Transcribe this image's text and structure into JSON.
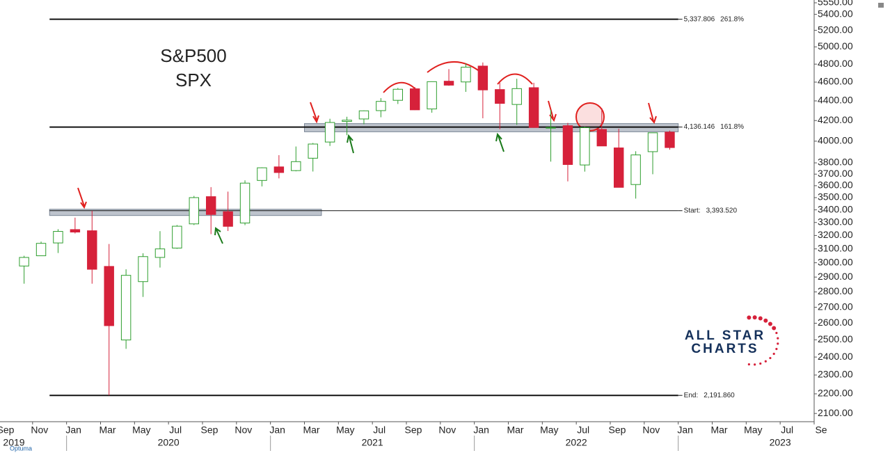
{
  "chart_data": {
    "type": "candlestick",
    "title": "S&P500",
    "subtitle": "SPX",
    "log_scale": true,
    "up_color": "#2e9e2e",
    "down_color": "#d6213a",
    "ylim": [
      2063,
      5550
    ],
    "yticks": [
      {
        "value": 2100,
        "label": "2100.00"
      },
      {
        "value": 2200,
        "label": "2200.00"
      },
      {
        "value": 2300,
        "label": "2300.00"
      },
      {
        "value": 2400,
        "label": "2400.00"
      },
      {
        "value": 2500,
        "label": "2500.00"
      },
      {
        "value": 2600,
        "label": "2600.00"
      },
      {
        "value": 2700,
        "label": "2700.00"
      },
      {
        "value": 2800,
        "label": "2800.00"
      },
      {
        "value": 2900,
        "label": "2900.00"
      },
      {
        "value": 3000,
        "label": "3000.00"
      },
      {
        "value": 3100,
        "label": "3100.00"
      },
      {
        "value": 3200,
        "label": "3200.00"
      },
      {
        "value": 3300,
        "label": "3300.00"
      },
      {
        "value": 3400,
        "label": "3400.00"
      },
      {
        "value": 3500,
        "label": "3500.00"
      },
      {
        "value": 3600,
        "label": "3600.00"
      },
      {
        "value": 3700,
        "label": "3700.00"
      },
      {
        "value": 3800,
        "label": "3800.00"
      },
      {
        "value": 4000,
        "label": "4000.00"
      },
      {
        "value": 4200,
        "label": "4200.00"
      },
      {
        "value": 4400,
        "label": "4400.00"
      },
      {
        "value": 4600,
        "label": "4600.00"
      },
      {
        "value": 4800,
        "label": "4800.00"
      },
      {
        "value": 5000,
        "label": "5000.00"
      },
      {
        "value": 5200,
        "label": "5200.00"
      },
      {
        "value": 5400,
        "label": "5400.00"
      },
      {
        "value": 5550,
        "label": "5550.00"
      }
    ],
    "xlim": [
      "2019-09",
      "2023-09"
    ],
    "xticks": [
      {
        "value": "2019-09",
        "label": "Sep"
      },
      {
        "value": "2019-11",
        "label": "Nov"
      },
      {
        "value": "2020-01",
        "label": "Jan"
      },
      {
        "value": "2020-03",
        "label": "Mar"
      },
      {
        "value": "2020-05",
        "label": "May"
      },
      {
        "value": "2020-07",
        "label": "Jul"
      },
      {
        "value": "2020-09",
        "label": "Sep"
      },
      {
        "value": "2020-11",
        "label": "Nov"
      },
      {
        "value": "2021-01",
        "label": "Jan"
      },
      {
        "value": "2021-03",
        "label": "Mar"
      },
      {
        "value": "2021-05",
        "label": "May"
      },
      {
        "value": "2021-07",
        "label": "Jul"
      },
      {
        "value": "2021-09",
        "label": "Sep"
      },
      {
        "value": "2021-11",
        "label": "Nov"
      },
      {
        "value": "2022-01",
        "label": "Jan"
      },
      {
        "value": "2022-03",
        "label": "Mar"
      },
      {
        "value": "2022-05",
        "label": "May"
      },
      {
        "value": "2022-07",
        "label": "Jul"
      },
      {
        "value": "2022-09",
        "label": "Sep"
      },
      {
        "value": "2022-11",
        "label": "Nov"
      },
      {
        "value": "2023-01",
        "label": "Jan"
      },
      {
        "value": "2023-03",
        "label": "Mar"
      },
      {
        "value": "2023-05",
        "label": "May"
      },
      {
        "value": "2023-07",
        "label": "Jul"
      },
      {
        "value": "2023-09",
        "label": "Se"
      }
    ],
    "year_labels": [
      "2019",
      "2020",
      "2021",
      "2022",
      "2023"
    ],
    "x": [
      "2019-10",
      "2019-11",
      "2019-12",
      "2020-01",
      "2020-02",
      "2020-03",
      "2020-04",
      "2020-05",
      "2020-06",
      "2020-07",
      "2020-08",
      "2020-09",
      "2020-10",
      "2020-11",
      "2020-12",
      "2021-01",
      "2021-02",
      "2021-03",
      "2021-04",
      "2021-05",
      "2021-06",
      "2021-07",
      "2021-08",
      "2021-09",
      "2021-10",
      "2021-11",
      "2021-12",
      "2022-01",
      "2022-02",
      "2022-03",
      "2022-04",
      "2022-05",
      "2022-06",
      "2022-07",
      "2022-08",
      "2022-09",
      "2022-10",
      "2022-11",
      "2022-12"
    ],
    "open": [
      2977,
      3050,
      3144,
      3245,
      3236,
      2974,
      2499,
      2869,
      3038,
      3106,
      3289,
      3508,
      3385,
      3296,
      3645,
      3764,
      3731,
      3842,
      3992,
      4191,
      4216,
      4300,
      4406,
      4528,
      4317,
      4610,
      4602,
      4778,
      4520,
      4363,
      4540,
      4131,
      4149,
      3781,
      4113,
      3937,
      3610,
      3902,
      4087
    ],
    "high": [
      3050,
      3154,
      3248,
      3338,
      3393,
      3136,
      2954,
      3068,
      3233,
      3280,
      3514,
      3588,
      3550,
      3646,
      3760,
      3870,
      3950,
      3983,
      4218,
      4238,
      4302,
      4429,
      4537,
      4546,
      4608,
      4744,
      4808,
      4819,
      4595,
      4637,
      4593,
      4307,
      4177,
      4140,
      4325,
      4120,
      3906,
      4080,
      4101
    ],
    "low": [
      2855,
      3050,
      3070,
      3215,
      2855,
      2192,
      2447,
      2767,
      2966,
      3101,
      3280,
      3210,
      3234,
      3279,
      3594,
      3663,
      3725,
      3723,
      3955,
      4057,
      4164,
      4233,
      4368,
      4306,
      4279,
      4560,
      4495,
      4223,
      4115,
      4157,
      4129,
      3811,
      3637,
      3722,
      3955,
      3585,
      3492,
      3699,
      3920
    ],
    "close": [
      3038,
      3141,
      3231,
      3226,
      2954,
      2585,
      2912,
      3044,
      3100,
      3271,
      3500,
      3363,
      3270,
      3622,
      3756,
      3714,
      3811,
      3973,
      4181,
      4204,
      4298,
      4395,
      4523,
      4308,
      4605,
      4567,
      4766,
      4516,
      4374,
      4530,
      4132,
      4132,
      3785,
      4130,
      3955,
      3586,
      3872,
      4080,
      3940
    ],
    "levels": [
      {
        "value": 5337.806,
        "label": "5,337.806",
        "pct": "261.8%",
        "start": "2019-12",
        "end": "2023-01"
      },
      {
        "value": 4136.146,
        "label": "4,136.146",
        "pct": "161.8%",
        "start": "2019-12",
        "end": "2023-01"
      },
      {
        "name": "Start:",
        "value": 3393.52,
        "label": "3,393.520",
        "start": "2019-12",
        "end": "2023-01"
      },
      {
        "value": 2191.86,
        "name": "End:",
        "label": "2,191.860",
        "start": "2019-12",
        "end": "2023-01"
      }
    ],
    "zones": [
      {
        "low": 4090,
        "high": 4170,
        "start": "2021-03",
        "end": "2023-01"
      },
      {
        "low": 3355,
        "high": 3405,
        "start": "2019-12",
        "end": "2021-04"
      }
    ],
    "logo": [
      "ALL STAR",
      "CHARTS"
    ],
    "source": "Optuma"
  }
}
